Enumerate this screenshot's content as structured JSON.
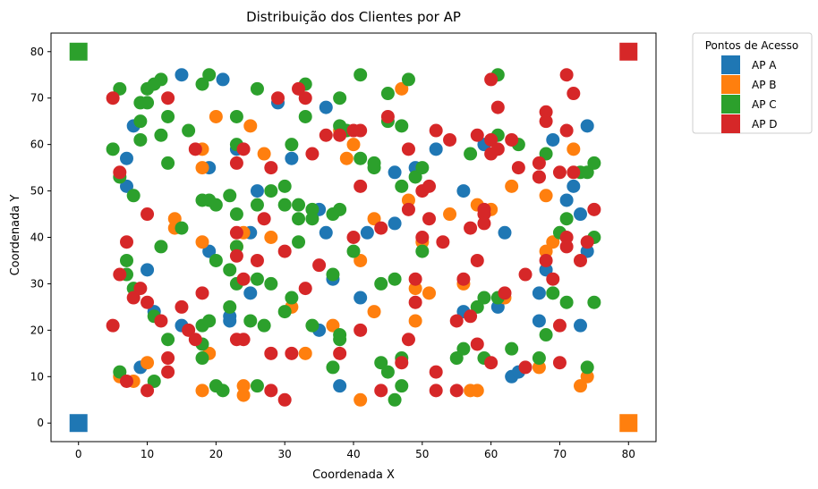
{
  "chart_data": {
    "type": "scatter",
    "title": "Distribuição dos Clientes por AP",
    "xlabel": "Coordenada X",
    "ylabel": "Coordenada Y",
    "xlim": [
      -4,
      84
    ],
    "ylim": [
      -4,
      84
    ],
    "xticks": [
      "0",
      "10",
      "20",
      "30",
      "40",
      "50",
      "60",
      "70",
      "80"
    ],
    "yticks": [
      "0",
      "10",
      "20",
      "30",
      "40",
      "50",
      "60",
      "70",
      "80"
    ],
    "grid": false,
    "legend": {
      "title": "Pontos de Acesso",
      "placement": "outside-upper-right"
    },
    "access_points": [
      {
        "name": "AP A",
        "x": 0,
        "y": 0,
        "color": "#1f77b4"
      },
      {
        "name": "AP B",
        "x": 80,
        "y": 0,
        "color": "#ff7f0e"
      },
      {
        "name": "AP C",
        "x": 0,
        "y": 80,
        "color": "#2ca02c"
      },
      {
        "name": "AP D",
        "x": 80,
        "y": 80,
        "color": "#d62728"
      }
    ],
    "series": [
      {
        "name": "AP A",
        "color": "#1f77b4",
        "points": [
          [
            15,
            75
          ],
          [
            21,
            74
          ],
          [
            29,
            69
          ],
          [
            36,
            68
          ],
          [
            7,
            57
          ],
          [
            7,
            51
          ],
          [
            8,
            64
          ],
          [
            19,
            55
          ],
          [
            23,
            59
          ],
          [
            26,
            50
          ],
          [
            31,
            57
          ],
          [
            35,
            46
          ],
          [
            36,
            41
          ],
          [
            25,
            41
          ],
          [
            25,
            28
          ],
          [
            22,
            22
          ],
          [
            22,
            23
          ],
          [
            15,
            21
          ],
          [
            11,
            24
          ],
          [
            10,
            33
          ],
          [
            9,
            12
          ],
          [
            19,
            37
          ],
          [
            37,
            31
          ],
          [
            35,
            20
          ],
          [
            38,
            8
          ],
          [
            41,
            27
          ],
          [
            42,
            41
          ],
          [
            46,
            43
          ],
          [
            46,
            54
          ],
          [
            49,
            55
          ],
          [
            52,
            59
          ],
          [
            56,
            50
          ],
          [
            56,
            24
          ],
          [
            59,
            60
          ],
          [
            61,
            25
          ],
          [
            62,
            41
          ],
          [
            63,
            10
          ],
          [
            64,
            11
          ],
          [
            67,
            28
          ],
          [
            67,
            22
          ],
          [
            68,
            33
          ],
          [
            69,
            61
          ],
          [
            71,
            48
          ],
          [
            72,
            51
          ],
          [
            73,
            45
          ],
          [
            73,
            21
          ],
          [
            74,
            64
          ],
          [
            74,
            37
          ]
        ]
      },
      {
        "name": "AP B",
        "color": "#ff7f0e",
        "points": [
          [
            6,
            10
          ],
          [
            8,
            9
          ],
          [
            10,
            13
          ],
          [
            14,
            44
          ],
          [
            14,
            42
          ],
          [
            18,
            59
          ],
          [
            18,
            55
          ],
          [
            18,
            39
          ],
          [
            19,
            15
          ],
          [
            18,
            7
          ],
          [
            20,
            66
          ],
          [
            23,
            38
          ],
          [
            24,
            41
          ],
          [
            24,
            6
          ],
          [
            24,
            8
          ],
          [
            25,
            64
          ],
          [
            27,
            58
          ],
          [
            28,
            40
          ],
          [
            31,
            25
          ],
          [
            33,
            15
          ],
          [
            37,
            21
          ],
          [
            38,
            63
          ],
          [
            39,
            57
          ],
          [
            40,
            60
          ],
          [
            41,
            35
          ],
          [
            41,
            5
          ],
          [
            43,
            44
          ],
          [
            43,
            24
          ],
          [
            47,
            72
          ],
          [
            48,
            48
          ],
          [
            49,
            29
          ],
          [
            49,
            22
          ],
          [
            50,
            39
          ],
          [
            51,
            28
          ],
          [
            54,
            45
          ],
          [
            56,
            30
          ],
          [
            57,
            7
          ],
          [
            58,
            7
          ],
          [
            58,
            47
          ],
          [
            60,
            46
          ],
          [
            62,
            27
          ],
          [
            63,
            51
          ],
          [
            67,
            12
          ],
          [
            68,
            37
          ],
          [
            68,
            49
          ],
          [
            69,
            39
          ],
          [
            72,
            59
          ],
          [
            73,
            8
          ],
          [
            74,
            10
          ]
        ]
      },
      {
        "name": "AP C",
        "color": "#2ca02c",
        "points": [
          [
            6,
            72
          ],
          [
            9,
            69
          ],
          [
            10,
            69
          ],
          [
            10,
            72
          ],
          [
            12,
            74
          ],
          [
            9,
            65
          ],
          [
            11,
            73
          ],
          [
            13,
            66
          ],
          [
            12,
            62
          ],
          [
            16,
            63
          ],
          [
            18,
            73
          ],
          [
            19,
            75
          ],
          [
            23,
            66
          ],
          [
            26,
            72
          ],
          [
            23,
            60
          ],
          [
            33,
            73
          ],
          [
            33,
            66
          ],
          [
            38,
            70
          ],
          [
            38,
            64
          ],
          [
            41,
            75
          ],
          [
            45,
            71
          ],
          [
            45,
            65
          ],
          [
            47,
            64
          ],
          [
            48,
            74
          ],
          [
            5,
            59
          ],
          [
            6,
            53
          ],
          [
            8,
            49
          ],
          [
            9,
            61
          ],
          [
            13,
            56
          ],
          [
            18,
            48
          ],
          [
            19,
            48
          ],
          [
            20,
            47
          ],
          [
            22,
            49
          ],
          [
            23,
            45
          ],
          [
            26,
            47
          ],
          [
            28,
            50
          ],
          [
            30,
            51
          ],
          [
            30,
            47
          ],
          [
            31,
            60
          ],
          [
            32,
            47
          ],
          [
            32,
            44
          ],
          [
            34,
            46
          ],
          [
            34,
            44
          ],
          [
            37,
            45
          ],
          [
            38,
            46
          ],
          [
            39,
            63
          ],
          [
            41,
            57
          ],
          [
            43,
            55
          ],
          [
            43,
            56
          ],
          [
            47,
            51
          ],
          [
            49,
            53
          ],
          [
            50,
            55
          ],
          [
            57,
            58
          ],
          [
            61,
            62
          ],
          [
            61,
            75
          ],
          [
            64,
            60
          ],
          [
            68,
            58
          ],
          [
            70,
            41
          ],
          [
            71,
            44
          ],
          [
            73,
            54
          ],
          [
            74,
            54
          ],
          [
            75,
            56
          ],
          [
            75,
            40
          ],
          [
            7,
            35
          ],
          [
            7,
            32
          ],
          [
            8,
            29
          ],
          [
            12,
            38
          ],
          [
            15,
            42
          ],
          [
            18,
            21
          ],
          [
            19,
            22
          ],
          [
            20,
            8
          ],
          [
            21,
            7
          ],
          [
            22,
            33
          ],
          [
            23,
            38
          ],
          [
            23,
            30
          ],
          [
            25,
            22
          ],
          [
            26,
            31
          ],
          [
            26,
            8
          ],
          [
            27,
            21
          ],
          [
            28,
            30
          ],
          [
            30,
            24
          ],
          [
            31,
            27
          ],
          [
            32,
            39
          ],
          [
            34,
            21
          ],
          [
            37,
            32
          ],
          [
            37,
            12
          ],
          [
            38,
            19
          ],
          [
            38,
            18
          ],
          [
            40,
            37
          ],
          [
            44,
            30
          ],
          [
            44,
            13
          ],
          [
            45,
            11
          ],
          [
            46,
            31
          ],
          [
            46,
            5
          ],
          [
            47,
            14
          ],
          [
            47,
            8
          ],
          [
            50,
            37
          ],
          [
            55,
            14
          ],
          [
            56,
            16
          ],
          [
            58,
            25
          ],
          [
            59,
            14
          ],
          [
            59,
            27
          ],
          [
            61,
            27
          ],
          [
            63,
            16
          ],
          [
            67,
            14
          ],
          [
            68,
            19
          ],
          [
            69,
            28
          ],
          [
            71,
            26
          ],
          [
            74,
            12
          ],
          [
            75,
            26
          ],
          [
            6,
            11
          ],
          [
            11,
            23
          ],
          [
            11,
            9
          ],
          [
            13,
            18
          ],
          [
            18,
            17
          ],
          [
            18,
            14
          ],
          [
            20,
            35
          ],
          [
            22,
            25
          ]
        ]
      },
      {
        "name": "AP D",
        "color": "#d62728",
        "points": [
          [
            5,
            70
          ],
          [
            6,
            54
          ],
          [
            10,
            45
          ],
          [
            13,
            70
          ],
          [
            17,
            59
          ],
          [
            24,
            59
          ],
          [
            28,
            55
          ],
          [
            29,
            70
          ],
          [
            32,
            72
          ],
          [
            33,
            70
          ],
          [
            34,
            58
          ],
          [
            36,
            62
          ],
          [
            38,
            62
          ],
          [
            40,
            63
          ],
          [
            41,
            63
          ],
          [
            41,
            51
          ],
          [
            44,
            42
          ],
          [
            45,
            66
          ],
          [
            48,
            59
          ],
          [
            48,
            46
          ],
          [
            50,
            50
          ],
          [
            51,
            51
          ],
          [
            51,
            44
          ],
          [
            52,
            63
          ],
          [
            54,
            61
          ],
          [
            55,
            22
          ],
          [
            56,
            31
          ],
          [
            57,
            42
          ],
          [
            58,
            35
          ],
          [
            58,
            62
          ],
          [
            59,
            46
          ],
          [
            59,
            45
          ],
          [
            59,
            43
          ],
          [
            60,
            61
          ],
          [
            60,
            74
          ],
          [
            60,
            58
          ],
          [
            61,
            59
          ],
          [
            61,
            68
          ],
          [
            62,
            28
          ],
          [
            63,
            61
          ],
          [
            64,
            55
          ],
          [
            65,
            32
          ],
          [
            67,
            56
          ],
          [
            67,
            53
          ],
          [
            68,
            67
          ],
          [
            68,
            65
          ],
          [
            68,
            35
          ],
          [
            69,
            31
          ],
          [
            70,
            54
          ],
          [
            70,
            21
          ],
          [
            71,
            75
          ],
          [
            71,
            63
          ],
          [
            71,
            40
          ],
          [
            71,
            38
          ],
          [
            72,
            71
          ],
          [
            72,
            54
          ],
          [
            73,
            35
          ],
          [
            74,
            39
          ],
          [
            75,
            46
          ],
          [
            5,
            21
          ],
          [
            6,
            32
          ],
          [
            7,
            39
          ],
          [
            7,
            9
          ],
          [
            8,
            27
          ],
          [
            9,
            29
          ],
          [
            10,
            26
          ],
          [
            10,
            7
          ],
          [
            12,
            22
          ],
          [
            13,
            14
          ],
          [
            13,
            11
          ],
          [
            15,
            25
          ],
          [
            16,
            20
          ],
          [
            17,
            18
          ],
          [
            18,
            28
          ],
          [
            23,
            56
          ],
          [
            23,
            41
          ],
          [
            23,
            36
          ],
          [
            23,
            18
          ],
          [
            24,
            31
          ],
          [
            24,
            18
          ],
          [
            26,
            35
          ],
          [
            27,
            44
          ],
          [
            28,
            15
          ],
          [
            28,
            7
          ],
          [
            30,
            37
          ],
          [
            30,
            5
          ],
          [
            31,
            15
          ],
          [
            33,
            29
          ],
          [
            35,
            34
          ],
          [
            38,
            15
          ],
          [
            40,
            40
          ],
          [
            41,
            20
          ],
          [
            44,
            7
          ],
          [
            47,
            13
          ],
          [
            48,
            18
          ],
          [
            49,
            26
          ],
          [
            49,
            31
          ],
          [
            50,
            40
          ],
          [
            52,
            11
          ],
          [
            52,
            7
          ],
          [
            53,
            39
          ],
          [
            55,
            7
          ],
          [
            57,
            23
          ],
          [
            58,
            17
          ],
          [
            60,
            13
          ],
          [
            65,
            12
          ],
          [
            67,
            53
          ],
          [
            70,
            13
          ]
        ]
      }
    ]
  }
}
